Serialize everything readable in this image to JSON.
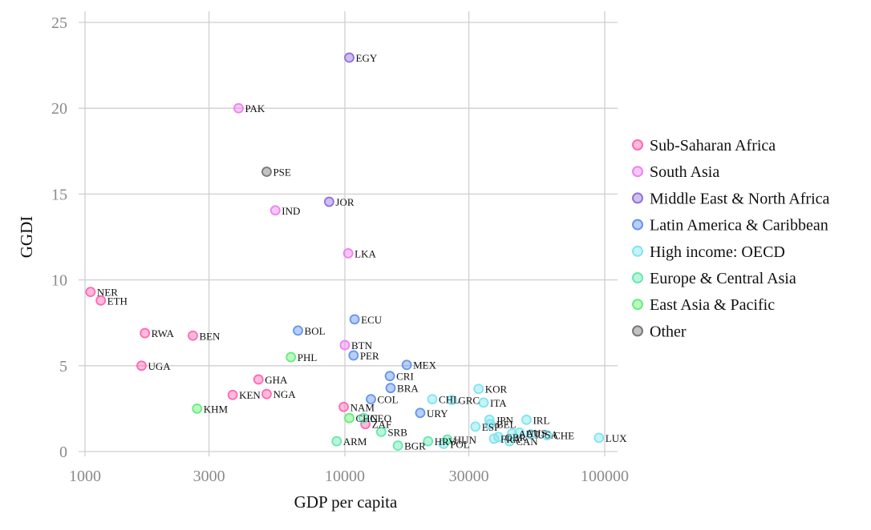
{
  "chart_data": {
    "type": "scatter",
    "xlabel": "GDP per capita",
    "ylabel": "GGDI",
    "xscale": "log",
    "xlim": [
      1000,
      110000
    ],
    "ylim": [
      0,
      25.5
    ],
    "xticks": [
      1000,
      3000,
      10000,
      30000,
      100000
    ],
    "xtick_labels": [
      "1000",
      "3000",
      "10000",
      "30000",
      "100000"
    ],
    "yticks": [
      0,
      5,
      10,
      15,
      20,
      25
    ],
    "ytick_labels": [
      "0",
      "5",
      "10",
      "15",
      "20",
      "25"
    ],
    "grid": true,
    "legend_position": "right",
    "groups": [
      {
        "name": "Sub-Saharan Africa",
        "color": "#ff69b4"
      },
      {
        "name": "South Asia",
        "color": "#ee82ee"
      },
      {
        "name": "Middle East & North Africa",
        "color": "#9370db"
      },
      {
        "name": "Latin America & Caribbean",
        "color": "#6495ed"
      },
      {
        "name": "High income: OECD",
        "color": "#7fe5f0"
      },
      {
        "name": "Europe & Central Asia",
        "color": "#66e8b0"
      },
      {
        "name": "East Asia & Pacific",
        "color": "#66ee77"
      },
      {
        "name": "Other",
        "color": "#777777"
      }
    ],
    "points": [
      {
        "label": "NER",
        "x": 1050,
        "y": 9.3,
        "group": 0
      },
      {
        "label": "ETH",
        "x": 1150,
        "y": 8.8,
        "group": 0
      },
      {
        "label": "RWA",
        "x": 1700,
        "y": 6.9,
        "group": 0
      },
      {
        "label": "BEN",
        "x": 2600,
        "y": 6.75,
        "group": 0
      },
      {
        "label": "UGA",
        "x": 1650,
        "y": 5.0,
        "group": 0
      },
      {
        "label": "GHA",
        "x": 4650,
        "y": 4.2,
        "group": 0
      },
      {
        "label": "KEN",
        "x": 3700,
        "y": 3.3,
        "group": 0
      },
      {
        "label": "NGA",
        "x": 5000,
        "y": 3.35,
        "group": 0
      },
      {
        "label": "NAM",
        "x": 9900,
        "y": 2.6,
        "group": 0
      },
      {
        "label": "ZAF",
        "x": 12000,
        "y": 1.6,
        "group": 0
      },
      {
        "label": "PAK",
        "x": 3900,
        "y": 20.0,
        "group": 1
      },
      {
        "label": "IND",
        "x": 5400,
        "y": 14.05,
        "group": 1
      },
      {
        "label": "LKA",
        "x": 10300,
        "y": 11.55,
        "group": 1
      },
      {
        "label": "BTN",
        "x": 10000,
        "y": 6.2,
        "group": 1
      },
      {
        "label": "EGY",
        "x": 10400,
        "y": 22.95,
        "group": 2
      },
      {
        "label": "JOR",
        "x": 8700,
        "y": 14.55,
        "group": 2
      },
      {
        "label": "BOL",
        "x": 6600,
        "y": 7.05,
        "group": 3
      },
      {
        "label": "ECU",
        "x": 10900,
        "y": 7.7,
        "group": 3
      },
      {
        "label": "PER",
        "x": 10800,
        "y": 5.6,
        "group": 3
      },
      {
        "label": "MEX",
        "x": 17300,
        "y": 5.05,
        "group": 3
      },
      {
        "label": "CRI",
        "x": 14900,
        "y": 4.4,
        "group": 3
      },
      {
        "label": "BRA",
        "x": 15000,
        "y": 3.7,
        "group": 3
      },
      {
        "label": "COL",
        "x": 12600,
        "y": 3.05,
        "group": 3
      },
      {
        "label": "URY",
        "x": 19500,
        "y": 2.25,
        "group": 3
      },
      {
        "label": "CHL",
        "x": 21700,
        "y": 3.05,
        "group": 4
      },
      {
        "label": "GRC",
        "x": 25800,
        "y": 3.0,
        "group": 4
      },
      {
        "label": "KOR",
        "x": 32700,
        "y": 3.65,
        "group": 4
      },
      {
        "label": "ITA",
        "x": 34200,
        "y": 2.85,
        "group": 4
      },
      {
        "label": "JPN",
        "x": 36000,
        "y": 1.85,
        "group": 4
      },
      {
        "label": "BEL",
        "x": 36200,
        "y": 1.6,
        "group": 4
      },
      {
        "label": "ESP",
        "x": 31800,
        "y": 1.45,
        "group": 4
      },
      {
        "label": "IRL",
        "x": 50000,
        "y": 1.85,
        "group": 4
      },
      {
        "label": "AUT",
        "x": 44000,
        "y": 1.05,
        "group": 4
      },
      {
        "label": "AUS",
        "x": 47000,
        "y": 1.1,
        "group": 4
      },
      {
        "label": "USA",
        "x": 52000,
        "y": 1.0,
        "group": 4
      },
      {
        "label": "GBR",
        "x": 39000,
        "y": 0.85,
        "group": 4
      },
      {
        "label": "FRA",
        "x": 37500,
        "y": 0.75,
        "group": 4
      },
      {
        "label": "CAN",
        "x": 43000,
        "y": 0.6,
        "group": 4
      },
      {
        "label": "CHE",
        "x": 60000,
        "y": 0.95,
        "group": 4
      },
      {
        "label": "LUX",
        "x": 95000,
        "y": 0.8,
        "group": 4
      },
      {
        "label": "POL",
        "x": 24000,
        "y": 0.45,
        "group": 4
      },
      {
        "label": "SRB",
        "x": 13800,
        "y": 1.15,
        "group": 5
      },
      {
        "label": "ARM",
        "x": 9300,
        "y": 0.6,
        "group": 5
      },
      {
        "label": "BGR",
        "x": 16000,
        "y": 0.35,
        "group": 5
      },
      {
        "label": "HRV",
        "x": 20900,
        "y": 0.6,
        "group": 5
      },
      {
        "label": "HUN",
        "x": 24800,
        "y": 0.7,
        "group": 5
      },
      {
        "label": "GEO",
        "x": 11800,
        "y": 1.95,
        "group": 5
      },
      {
        "label": "PHL",
        "x": 6200,
        "y": 5.5,
        "group": 6
      },
      {
        "label": "KHM",
        "x": 2700,
        "y": 2.5,
        "group": 6
      },
      {
        "label": "CHN",
        "x": 10400,
        "y": 1.95,
        "group": 6
      },
      {
        "label": "PSE",
        "x": 5000,
        "y": 16.3,
        "group": 7
      }
    ]
  }
}
